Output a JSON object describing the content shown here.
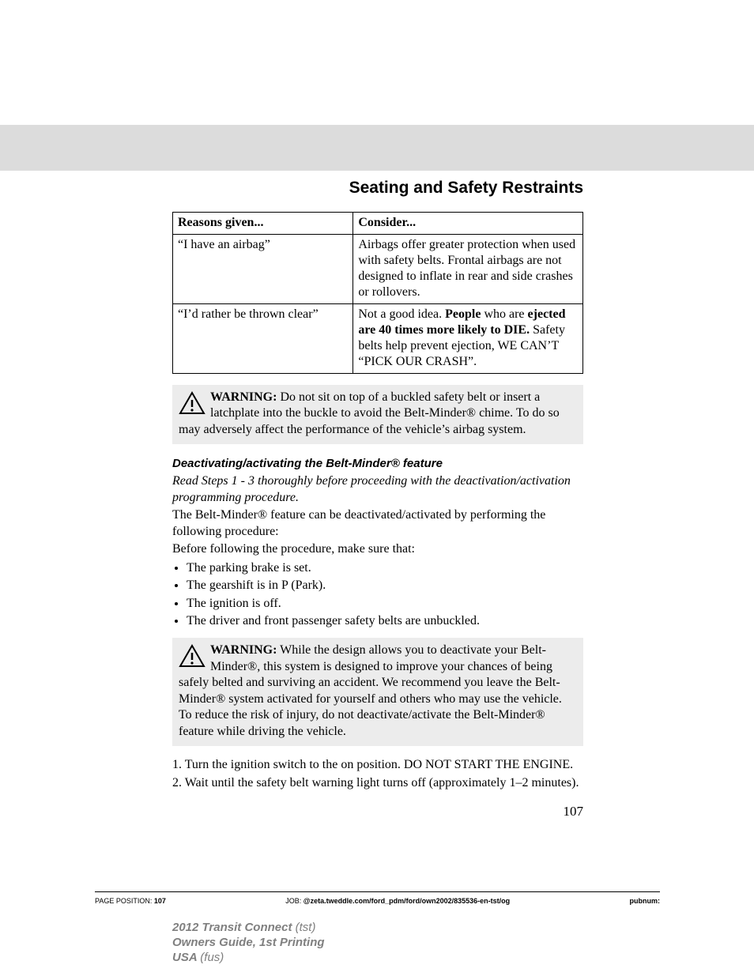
{
  "chapter_title": "Seating and Safety Restraints",
  "table": {
    "headers": [
      "Reasons given...",
      "Consider..."
    ],
    "rows": [
      {
        "reason": "“I have an airbag”",
        "consider_html": "Airbags offer greater protection when used with safety belts. Frontal airbags are not designed to inflate in rear and side crashes or rollovers."
      },
      {
        "reason": "“I’d rather be thrown clear”",
        "consider_html": "Not a good idea. <b>People</b> who are <b>ejected are 40 times more likely to DIE.</b> Safety belts help prevent ejection, WE CAN’T “PICK OUR CRASH”."
      }
    ]
  },
  "warning1_label": "WARNING:",
  "warning1_text": " Do not sit on top of a buckled safety belt or insert a latchplate into the buckle to avoid the Belt-Minder® chime. To do so may adversely affect the performance of the vehicle’s airbag system.",
  "subheading": "Deactivating/activating the Belt-Minder® feature",
  "italic_instruction": "Read Steps 1 - 3 thoroughly before proceeding with the deactivation/activation programming procedure.",
  "para_intro": "The Belt-Minder® feature can be deactivated/activated by performing the following procedure:",
  "para_before": "Before following the procedure, make sure that:",
  "checklist": [
    "The parking brake is set.",
    "The gearshift is in P (Park).",
    "The ignition is off.",
    "The driver and front passenger safety belts are unbuckled."
  ],
  "warning2_label": "WARNING:",
  "warning2_text": " While the design allows you to deactivate your Belt-Minder®, this system is designed to improve your chances of being safely belted and surviving an accident. We recommend you leave the Belt-Minder® system activated for yourself and others who may use the vehicle. To reduce the risk of injury, do not deactivate/activate the Belt-Minder® feature while driving the vehicle.",
  "step1": "1. Turn the ignition switch to the on position. DO NOT START THE ENGINE.",
  "step2": "2. Wait until the safety belt warning light turns off (approximately 1–2 minutes).",
  "page_number": "107",
  "footer": {
    "page_position_label": "PAGE POSITION:",
    "page_position_value": "107",
    "job_label": "JOB:",
    "job_value": "@zeta.tweddle.com/ford_pdm/ford/own2002/835536-en-tst/og",
    "pubnum_label": "pubnum:"
  },
  "vehicle": {
    "line1_bold": "2012 Transit Connect",
    "line1_paren": "(tst)",
    "line2": "Owners Guide, 1st Printing",
    "line3_bold": "USA",
    "line3_paren": "(fus)"
  }
}
